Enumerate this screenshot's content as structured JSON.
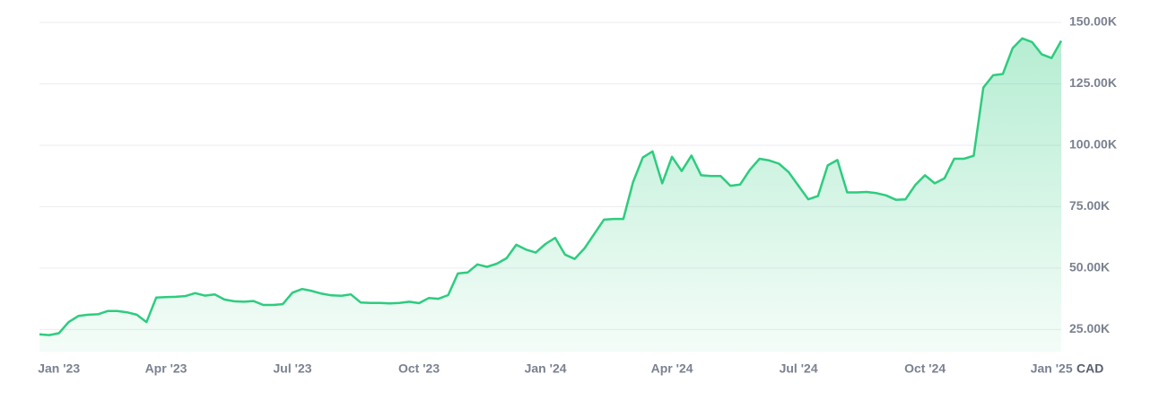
{
  "chart_data": {
    "type": "area",
    "categories": [
      null,
      null,
      "Jan '23",
      null,
      null,
      null,
      null,
      null,
      null,
      null,
      null,
      null,
      null,
      "Apr '23",
      null,
      null,
      null,
      null,
      null,
      null,
      null,
      null,
      null,
      null,
      null,
      null,
      "Jul '23",
      null,
      null,
      null,
      null,
      null,
      null,
      null,
      null,
      null,
      null,
      null,
      null,
      "Oct '23",
      null,
      null,
      null,
      null,
      null,
      null,
      null,
      null,
      null,
      null,
      null,
      null,
      "Jan '24",
      null,
      null,
      null,
      null,
      null,
      null,
      null,
      null,
      null,
      null,
      null,
      null,
      "Apr '24",
      null,
      null,
      null,
      null,
      null,
      null,
      null,
      null,
      null,
      null,
      null,
      null,
      "Jul '24",
      null,
      null,
      null,
      null,
      null,
      null,
      null,
      null,
      null,
      null,
      null,
      null,
      "Oct '24",
      null,
      null,
      null,
      null,
      null,
      null,
      null,
      null,
      null,
      null,
      null,
      null,
      "Jan '25",
      null
    ],
    "values": [
      23000,
      22700,
      23500,
      28000,
      30500,
      31000,
      31200,
      32500,
      32500,
      32000,
      31000,
      28000,
      38000,
      38200,
      38300,
      38600,
      39800,
      38800,
      39300,
      37200,
      36500,
      36300,
      36600,
      35000,
      35000,
      35300,
      40000,
      41500,
      40700,
      39600,
      38900,
      38700,
      39300,
      36000,
      35800,
      35800,
      35600,
      35800,
      36300,
      35700,
      37800,
      37500,
      39000,
      47800,
      48200,
      51500,
      50500,
      51800,
      54000,
      59500,
      57500,
      56300,
      59800,
      62300,
      55500,
      53700,
      58000,
      63800,
      69700,
      70000,
      70000,
      85000,
      95000,
      97500,
      84500,
      95300,
      89500,
      95800,
      87800,
      87500,
      87500,
      83500,
      84000,
      90000,
      94500,
      93800,
      92500,
      89000,
      83500,
      78000,
      79300,
      91800,
      94000,
      80800,
      80800,
      81000,
      80500,
      79600,
      77800,
      78000,
      83800,
      87800,
      84500,
      86500,
      94500,
      94500,
      95700,
      123500,
      128500,
      129000,
      139500,
      143500,
      142000,
      137000,
      135500,
      142500
    ],
    "color": "#2ecc7f",
    "currency": "CAD",
    "ylim": [
      16000,
      150000
    ],
    "yticks": [
      {
        "value": 25000,
        "label": "25.00K"
      },
      {
        "value": 50000,
        "label": "50.00K"
      },
      {
        "value": 75000,
        "label": "75.00K"
      },
      {
        "value": 100000,
        "label": "100.00K"
      },
      {
        "value": 125000,
        "label": "125.00K"
      },
      {
        "value": 150000,
        "label": "150.00K"
      }
    ],
    "grid": true
  }
}
